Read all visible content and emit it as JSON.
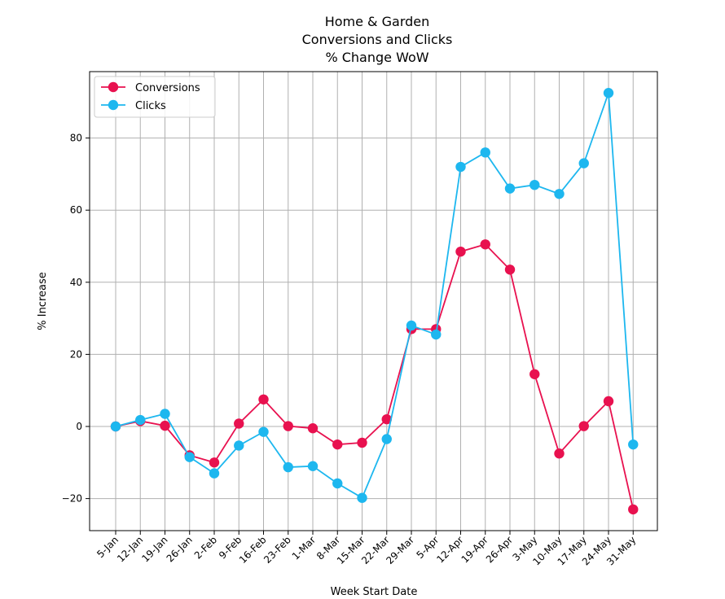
{
  "chart_data": {
    "type": "line",
    "title": [
      "Home & Garden",
      "Conversions and Clicks",
      "% Change WoW"
    ],
    "xlabel": "Week Start Date",
    "ylabel": "% Increase",
    "categories": [
      "5-Jan",
      "12-Jan",
      "19-Jan",
      "26-Jan",
      "2-Feb",
      "9-Feb",
      "16-Feb",
      "23-Feb",
      "1-Mar",
      "8-Mar",
      "15-Mar",
      "22-Mar",
      "29-Mar",
      "5-Apr",
      "12-Apr",
      "19-Apr",
      "26-Apr",
      "3-May",
      "10-May",
      "17-May",
      "24-May",
      "31-May"
    ],
    "yticks": [
      -20,
      0,
      20,
      40,
      60,
      80
    ],
    "ylim": [
      -29,
      98
    ],
    "grid": true,
    "legend_position": "upper-left",
    "series": [
      {
        "name": "Conversions",
        "color": "#e8114f",
        "values": [
          0.0,
          1.5,
          0.2,
          -8.0,
          -10.0,
          0.8,
          7.5,
          0.1,
          -0.5,
          -5.0,
          -4.5,
          2.0,
          27.0,
          27.0,
          48.5,
          50.5,
          43.5,
          14.5,
          -7.5,
          0.1,
          7.0,
          -23.0
        ]
      },
      {
        "name": "Clicks",
        "color": "#1db7ef",
        "values": [
          0.0,
          1.8,
          3.5,
          -8.5,
          -13.0,
          -5.3,
          -1.5,
          -11.3,
          -11.0,
          -15.8,
          -19.8,
          -3.5,
          28.0,
          25.5,
          72.0,
          76.0,
          66.0,
          67.0,
          64.5,
          73.0,
          92.5,
          -5.0
        ]
      }
    ]
  }
}
